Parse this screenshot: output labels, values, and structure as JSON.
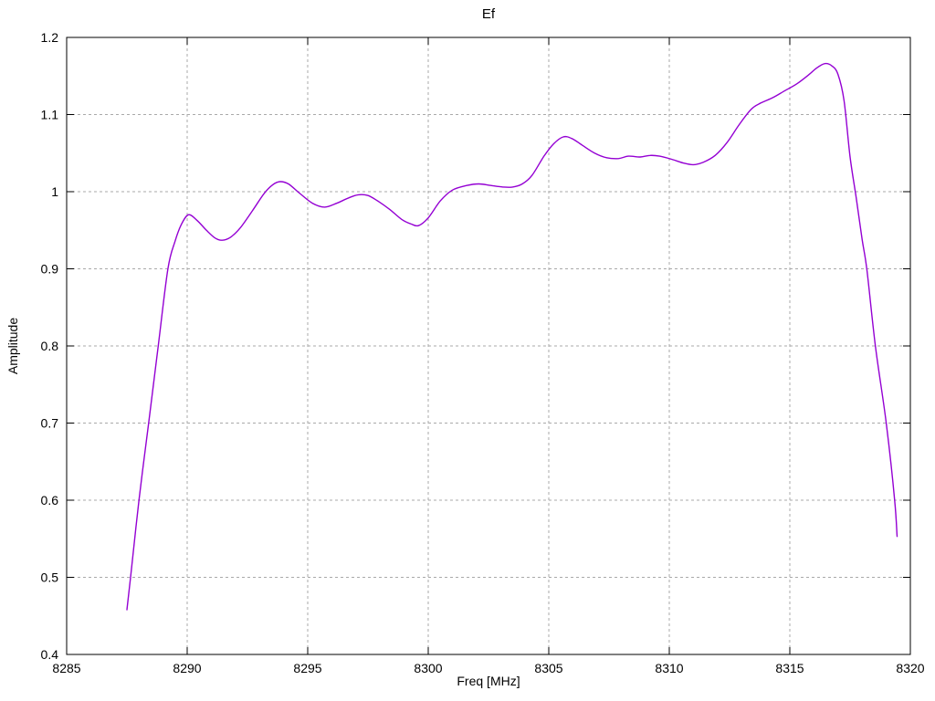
{
  "figure": {
    "background": "#ffffff"
  },
  "chart_data": {
    "type": "line",
    "title": "Ef",
    "xlabel": "Freq [MHz]",
    "ylabel": "Amplitude",
    "xlim": [
      8285,
      8320
    ],
    "ylim": [
      0.4,
      1.2
    ],
    "grid": true,
    "legend": "none",
    "colors": {
      "line": "#9400d3",
      "grid": "#a9a9a9",
      "axis": "#000000",
      "text": "#000000"
    },
    "x_ticks": {
      "values": [
        8285,
        8290,
        8295,
        8300,
        8305,
        8310,
        8315,
        8320
      ],
      "labels": [
        "8285",
        "8290",
        "8295",
        "8300",
        "8305",
        "8310",
        "8315",
        "8320"
      ]
    },
    "y_ticks": {
      "values": [
        0.4,
        0.5,
        0.6,
        0.7,
        0.8,
        0.9,
        1.0,
        1.1,
        1.2
      ],
      "labels": [
        "0.4",
        "0.5",
        "0.6",
        "0.7",
        "0.8",
        "0.9",
        "1",
        "1.1",
        "1.2"
      ]
    },
    "series": [
      {
        "name": "Ef",
        "points": [
          [
            8287.5,
            0.458
          ],
          [
            8287.65,
            0.5
          ],
          [
            8288.0,
            0.6
          ],
          [
            8288.4,
            0.7
          ],
          [
            8288.8,
            0.8
          ],
          [
            8289.2,
            0.9
          ],
          [
            8289.5,
            0.936
          ],
          [
            8289.75,
            0.957
          ],
          [
            8290.05,
            0.97
          ],
          [
            8290.4,
            0.963
          ],
          [
            8290.8,
            0.95
          ],
          [
            8291.15,
            0.94
          ],
          [
            8291.45,
            0.937
          ],
          [
            8291.8,
            0.941
          ],
          [
            8292.2,
            0.953
          ],
          [
            8292.7,
            0.975
          ],
          [
            8293.2,
            0.998
          ],
          [
            8293.55,
            1.009
          ],
          [
            8293.85,
            1.013
          ],
          [
            8294.2,
            1.01
          ],
          [
            8294.7,
            0.997
          ],
          [
            8295.2,
            0.985
          ],
          [
            8295.7,
            0.98
          ],
          [
            8296.2,
            0.985
          ],
          [
            8296.7,
            0.992
          ],
          [
            8297.1,
            0.996
          ],
          [
            8297.5,
            0.995
          ],
          [
            8297.9,
            0.988
          ],
          [
            8298.4,
            0.977
          ],
          [
            8298.9,
            0.964
          ],
          [
            8299.3,
            0.958
          ],
          [
            8299.6,
            0.956
          ],
          [
            8300.0,
            0.966
          ],
          [
            8300.5,
            0.988
          ],
          [
            8301.0,
            1.002
          ],
          [
            8301.6,
            1.008
          ],
          [
            8302.1,
            1.01
          ],
          [
            8302.6,
            1.008
          ],
          [
            8303.1,
            1.006
          ],
          [
            8303.5,
            1.006
          ],
          [
            8303.9,
            1.01
          ],
          [
            8304.3,
            1.021
          ],
          [
            8304.8,
            1.046
          ],
          [
            8305.2,
            1.062
          ],
          [
            8305.6,
            1.071
          ],
          [
            8305.95,
            1.069
          ],
          [
            8306.4,
            1.06
          ],
          [
            8306.9,
            1.05
          ],
          [
            8307.4,
            1.044
          ],
          [
            8307.9,
            1.043
          ],
          [
            8308.3,
            1.046
          ],
          [
            8308.8,
            1.045
          ],
          [
            8309.2,
            1.047
          ],
          [
            8309.6,
            1.046
          ],
          [
            8310.1,
            1.042
          ],
          [
            8310.6,
            1.037
          ],
          [
            8311.0,
            1.035
          ],
          [
            8311.4,
            1.038
          ],
          [
            8311.9,
            1.047
          ],
          [
            8312.4,
            1.064
          ],
          [
            8312.9,
            1.087
          ],
          [
            8313.4,
            1.107
          ],
          [
            8313.8,
            1.115
          ],
          [
            8314.3,
            1.122
          ],
          [
            8314.8,
            1.131
          ],
          [
            8315.3,
            1.14
          ],
          [
            8315.8,
            1.152
          ],
          [
            8316.1,
            1.16
          ],
          [
            8316.45,
            1.166
          ],
          [
            8316.75,
            1.163
          ],
          [
            8317.0,
            1.152
          ],
          [
            8317.25,
            1.118
          ],
          [
            8317.5,
            1.045
          ],
          [
            8317.75,
            0.993
          ],
          [
            8318.0,
            0.938
          ],
          [
            8318.2,
            0.898
          ],
          [
            8318.55,
            0.8
          ],
          [
            8319.0,
            0.7
          ],
          [
            8319.35,
            0.6
          ],
          [
            8319.45,
            0.553
          ]
        ]
      }
    ]
  }
}
